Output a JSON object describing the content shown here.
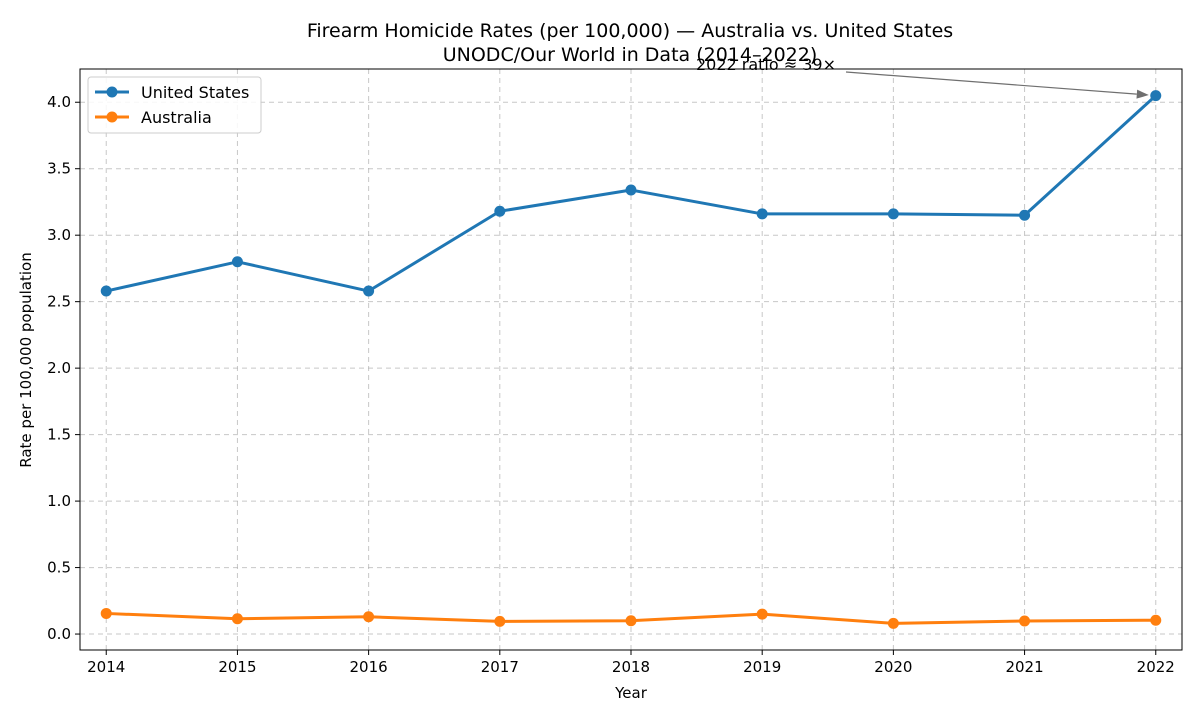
{
  "chart_data": {
    "type": "line",
    "title": "Firearm Homicide Rates (per 100,000) — Australia vs. United States",
    "subtitle": "UNODC/Our World in Data (2014–2022)",
    "xlabel": "Year",
    "ylabel": "Rate per 100,000 population",
    "x": [
      2014,
      2015,
      2016,
      2017,
      2018,
      2019,
      2020,
      2021,
      2022
    ],
    "xlim": [
      2013.8,
      2022.2
    ],
    "ylim": [
      -0.12,
      4.25
    ],
    "yticks": [
      0.0,
      0.5,
      1.0,
      1.5,
      2.0,
      2.5,
      3.0,
      3.5,
      4.0
    ],
    "ytick_labels": [
      "0.0",
      "0.5",
      "1.0",
      "1.5",
      "2.0",
      "2.5",
      "3.0",
      "3.5",
      "4.0"
    ],
    "xtick_labels": [
      "2014",
      "2015",
      "2016",
      "2017",
      "2018",
      "2019",
      "2020",
      "2021",
      "2022"
    ],
    "grid": true,
    "legend_position": "top-left",
    "series": [
      {
        "name": "United States",
        "color": "#1f77b4",
        "values": [
          2.58,
          2.8,
          2.58,
          3.18,
          3.34,
          3.16,
          3.16,
          3.15,
          4.05
        ]
      },
      {
        "name": "Australia",
        "color": "#ff7f0e",
        "values": [
          0.155,
          0.115,
          0.13,
          0.095,
          0.1,
          0.15,
          0.08,
          0.098,
          0.104
        ]
      }
    ],
    "annotation": {
      "text": "2022 ratio ≈ 39×",
      "x": 2022,
      "y": 4.05
    }
  }
}
